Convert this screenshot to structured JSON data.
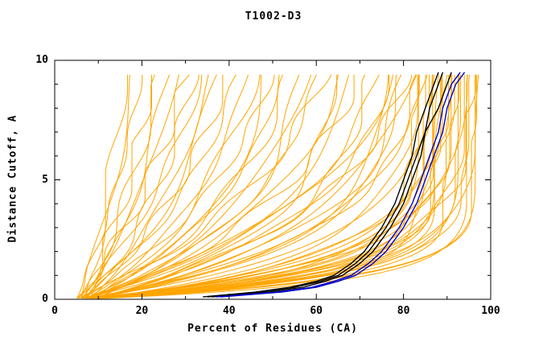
{
  "chart_data": {
    "type": "line",
    "title": "T1002-D3",
    "xlabel": "Percent of Residues (CA)",
    "ylabel": "Distance Cutoff, A",
    "xlim": [
      0,
      100
    ],
    "ylim": [
      0,
      10
    ],
    "x_ticks": [
      0,
      20,
      40,
      60,
      80,
      100
    ],
    "x_minor_ticks": [
      10,
      30,
      50,
      70,
      90
    ],
    "y_ticks": [
      0,
      5,
      10
    ],
    "y_minor_ticks": [
      1,
      2,
      3,
      4,
      6,
      7,
      8,
      9
    ],
    "x_tick_labels": [
      "0",
      "20",
      "40",
      "60",
      "80",
      "100"
    ],
    "y_tick_labels": [
      "0",
      "5",
      "10"
    ],
    "grid": false,
    "legend": "none",
    "colors": {
      "orange": "#ffa500",
      "black": "#000000",
      "blue": "#0000cd",
      "frame": "#000000",
      "background": "#ffffff"
    },
    "orange_param_format": [
      "start_x",
      "end_x",
      "tau"
    ],
    "orange_curves": [
      [
        6,
        97,
        0.9
      ],
      [
        7,
        96,
        1.2
      ],
      [
        5,
        95.5,
        0.8
      ],
      [
        8,
        95,
        1.5
      ],
      [
        6,
        94.5,
        1.0
      ],
      [
        9,
        94,
        1.8
      ],
      [
        7,
        93.5,
        0.7
      ],
      [
        6,
        93,
        1.3
      ],
      [
        8,
        92.5,
        1.0
      ],
      [
        5,
        92,
        1.6
      ],
      [
        7,
        91.5,
        0.9
      ],
      [
        9,
        91,
        2.0
      ],
      [
        6,
        90.5,
        1.2
      ],
      [
        8,
        90,
        0.8
      ],
      [
        7,
        89.5,
        1.5
      ],
      [
        5,
        89,
        1.1
      ],
      [
        9,
        88.5,
        1.9
      ],
      [
        6,
        88,
        0.9
      ],
      [
        8,
        87.5,
        1.4
      ],
      [
        7,
        87,
        1.0
      ],
      [
        6,
        86.5,
        2.2
      ],
      [
        9,
        86,
        1.2
      ],
      [
        5,
        85.5,
        0.9
      ],
      [
        8,
        85,
        1.7
      ],
      [
        7,
        84.5,
        1.1
      ],
      [
        6,
        84,
        1.4
      ],
      [
        9,
        83,
        2.0
      ],
      [
        7,
        82,
        1.2
      ],
      [
        8,
        85,
        3.0
      ],
      [
        6,
        83,
        2.6
      ],
      [
        9,
        82,
        3.5
      ],
      [
        7,
        80,
        2.8
      ],
      [
        8,
        79,
        2.3
      ],
      [
        6,
        77,
        3.3
      ],
      [
        9,
        81,
        4.0
      ],
      [
        7,
        78,
        4.5
      ],
      [
        7,
        76,
        2.2
      ],
      [
        6,
        74,
        3.8
      ],
      [
        8,
        72,
        2.9
      ],
      [
        9,
        70,
        5.0
      ],
      [
        6,
        68,
        3.4
      ],
      [
        7,
        66,
        4.2
      ],
      [
        8,
        64,
        2.6
      ],
      [
        5,
        62,
        5.5
      ],
      [
        7,
        60,
        3.9
      ],
      [
        9,
        58,
        4.6
      ],
      [
        6,
        56,
        3.1
      ],
      [
        8,
        54,
        5.2
      ],
      [
        7,
        52,
        4.4
      ],
      [
        6,
        50,
        6.0
      ],
      [
        8,
        48,
        3.6
      ],
      [
        9,
        46,
        5.8
      ],
      [
        7,
        44,
        4.9
      ],
      [
        6,
        42,
        6.5
      ],
      [
        7,
        40,
        8.0
      ],
      [
        5,
        38,
        5.9
      ],
      [
        8,
        36,
        7.2
      ],
      [
        6,
        34,
        9.0
      ],
      [
        7,
        32,
        6.8
      ],
      [
        5,
        30,
        8.5
      ],
      [
        6,
        28,
        7.6
      ],
      [
        8,
        26,
        10.0
      ],
      [
        6,
        24,
        9.2
      ],
      [
        7,
        22,
        8.8
      ],
      [
        5,
        20,
        11.0
      ],
      [
        6,
        18,
        10.5
      ],
      [
        7,
        16,
        12.0
      ]
    ],
    "highlight_y_levels": [
      0.1,
      0.2,
      0.3,
      0.5,
      0.75,
      1,
      1.5,
      2,
      2.5,
      3,
      4,
      5,
      6,
      7,
      8,
      9,
      9.5
    ],
    "highlight_series": [
      {
        "name": "black-model-curve-1",
        "color": "black",
        "xs": [
          34,
          40,
          46,
          54,
          60,
          64,
          68,
          71,
          73,
          75,
          78,
          80,
          82,
          83,
          85,
          87,
          88
        ]
      },
      {
        "name": "black-model-curve-2",
        "color": "black",
        "xs": [
          36,
          42,
          49,
          57,
          62,
          66,
          70,
          73,
          75,
          77,
          80,
          82,
          84,
          85,
          86,
          88,
          89
        ]
      },
      {
        "name": "black-model-curve-3",
        "color": "black",
        "xs": [
          35,
          41,
          47,
          55,
          61,
          65,
          69,
          72,
          74,
          76,
          79,
          81,
          83,
          85,
          88,
          90,
          91
        ]
      },
      {
        "name": "blue-model-curve-1",
        "color": "blue",
        "xs": [
          37,
          44,
          51,
          59,
          64,
          68,
          72,
          75,
          77,
          79,
          82,
          84,
          86,
          88,
          89,
          91,
          93
        ]
      },
      {
        "name": "blue-model-curve-2",
        "color": "blue",
        "xs": [
          38,
          45,
          52,
          60,
          65,
          69,
          73,
          76,
          78,
          80,
          83,
          85,
          87,
          89,
          90,
          92,
          94
        ]
      }
    ]
  }
}
